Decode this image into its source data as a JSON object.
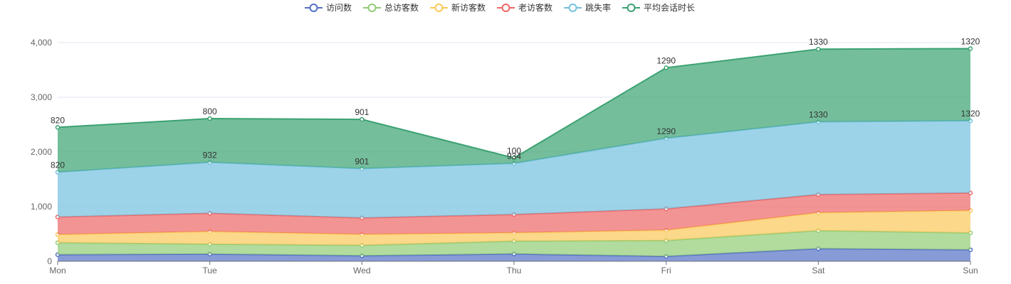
{
  "chart_data": {
    "type": "area",
    "stacked": true,
    "categories": [
      "Mon",
      "Tue",
      "Wed",
      "Thu",
      "Fri",
      "Sat",
      "Sun"
    ],
    "ylim": [
      0,
      4000
    ],
    "yticks": [
      0,
      1000,
      2000,
      3000,
      4000
    ],
    "ytick_labels": [
      "0",
      "1,000",
      "2,000",
      "3,000",
      "4,000"
    ],
    "grid": true,
    "legend_position": "top-center",
    "series": [
      {
        "name": "访问数",
        "color": "#5470c6",
        "values": [
          120,
          132,
          101,
          134,
          90,
          230,
          210
        ],
        "show_labels": false
      },
      {
        "name": "总访客数",
        "color": "#91cc75",
        "values": [
          220,
          182,
          191,
          234,
          290,
          330,
          310
        ],
        "show_labels": false
      },
      {
        "name": "新访客数",
        "color": "#fac858",
        "values": [
          150,
          232,
          201,
          154,
          190,
          330,
          410
        ],
        "show_labels": false
      },
      {
        "name": "老访客数",
        "color": "#ee6666",
        "values": [
          320,
          332,
          301,
          334,
          390,
          330,
          320
        ],
        "show_labels": false
      },
      {
        "name": "跳失率",
        "color": "#73c0de",
        "values": [
          820,
          932,
          901,
          934,
          1290,
          1330,
          1320
        ],
        "show_labels": true
      },
      {
        "name": "平均会话时长",
        "color": "#3ba272",
        "values": [
          820,
          800,
          901,
          100,
          1290,
          1330,
          1320
        ],
        "show_labels": true
      }
    ]
  }
}
